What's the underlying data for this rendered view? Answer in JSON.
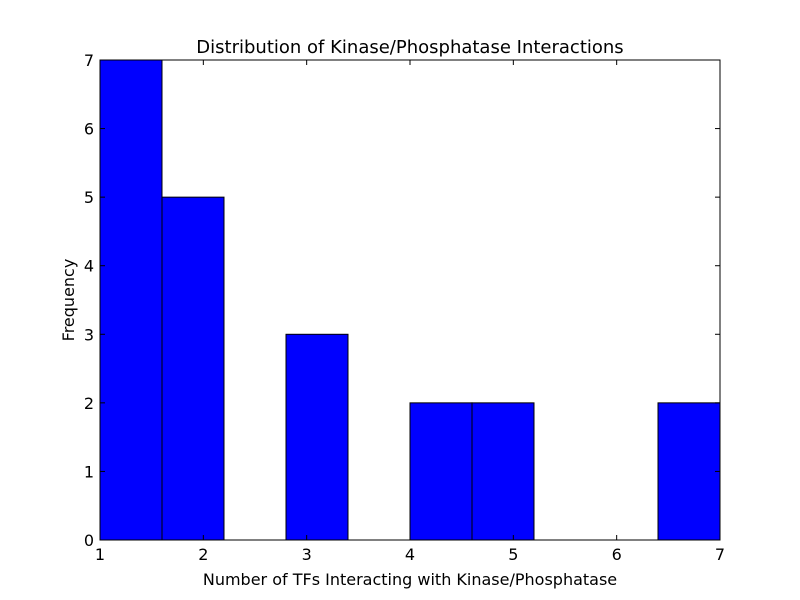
{
  "chart_data": {
    "type": "bar",
    "title": "Distribution of Kinase/Phosphatase Interactions",
    "xlabel": "Number of TFs Interacting with Kinase/Phosphatase",
    "ylabel": "Frequency",
    "xlim": [
      1,
      7
    ],
    "ylim": [
      0,
      7
    ],
    "x_ticks": [
      "1",
      "2",
      "3",
      "4",
      "5",
      "6",
      "7"
    ],
    "y_ticks": [
      "0",
      "1",
      "2",
      "3",
      "4",
      "5",
      "6",
      "7"
    ],
    "bins": [
      {
        "x_start": 1.0,
        "x_end": 1.6,
        "value": 7
      },
      {
        "x_start": 1.6,
        "x_end": 2.2,
        "value": 5
      },
      {
        "x_start": 2.2,
        "x_end": 2.8,
        "value": 0
      },
      {
        "x_start": 2.8,
        "x_end": 3.4,
        "value": 3
      },
      {
        "x_start": 3.4,
        "x_end": 4.0,
        "value": 0
      },
      {
        "x_start": 4.0,
        "x_end": 4.6,
        "value": 2
      },
      {
        "x_start": 4.6,
        "x_end": 5.2,
        "value": 2
      },
      {
        "x_start": 5.2,
        "x_end": 5.8,
        "value": 0
      },
      {
        "x_start": 5.8,
        "x_end": 6.4,
        "value": 0
      },
      {
        "x_start": 6.4,
        "x_end": 7.0,
        "value": 2
      }
    ],
    "bar_color": "#0000ff",
    "edge_color": "#000000",
    "grid": false,
    "legend": false
  }
}
